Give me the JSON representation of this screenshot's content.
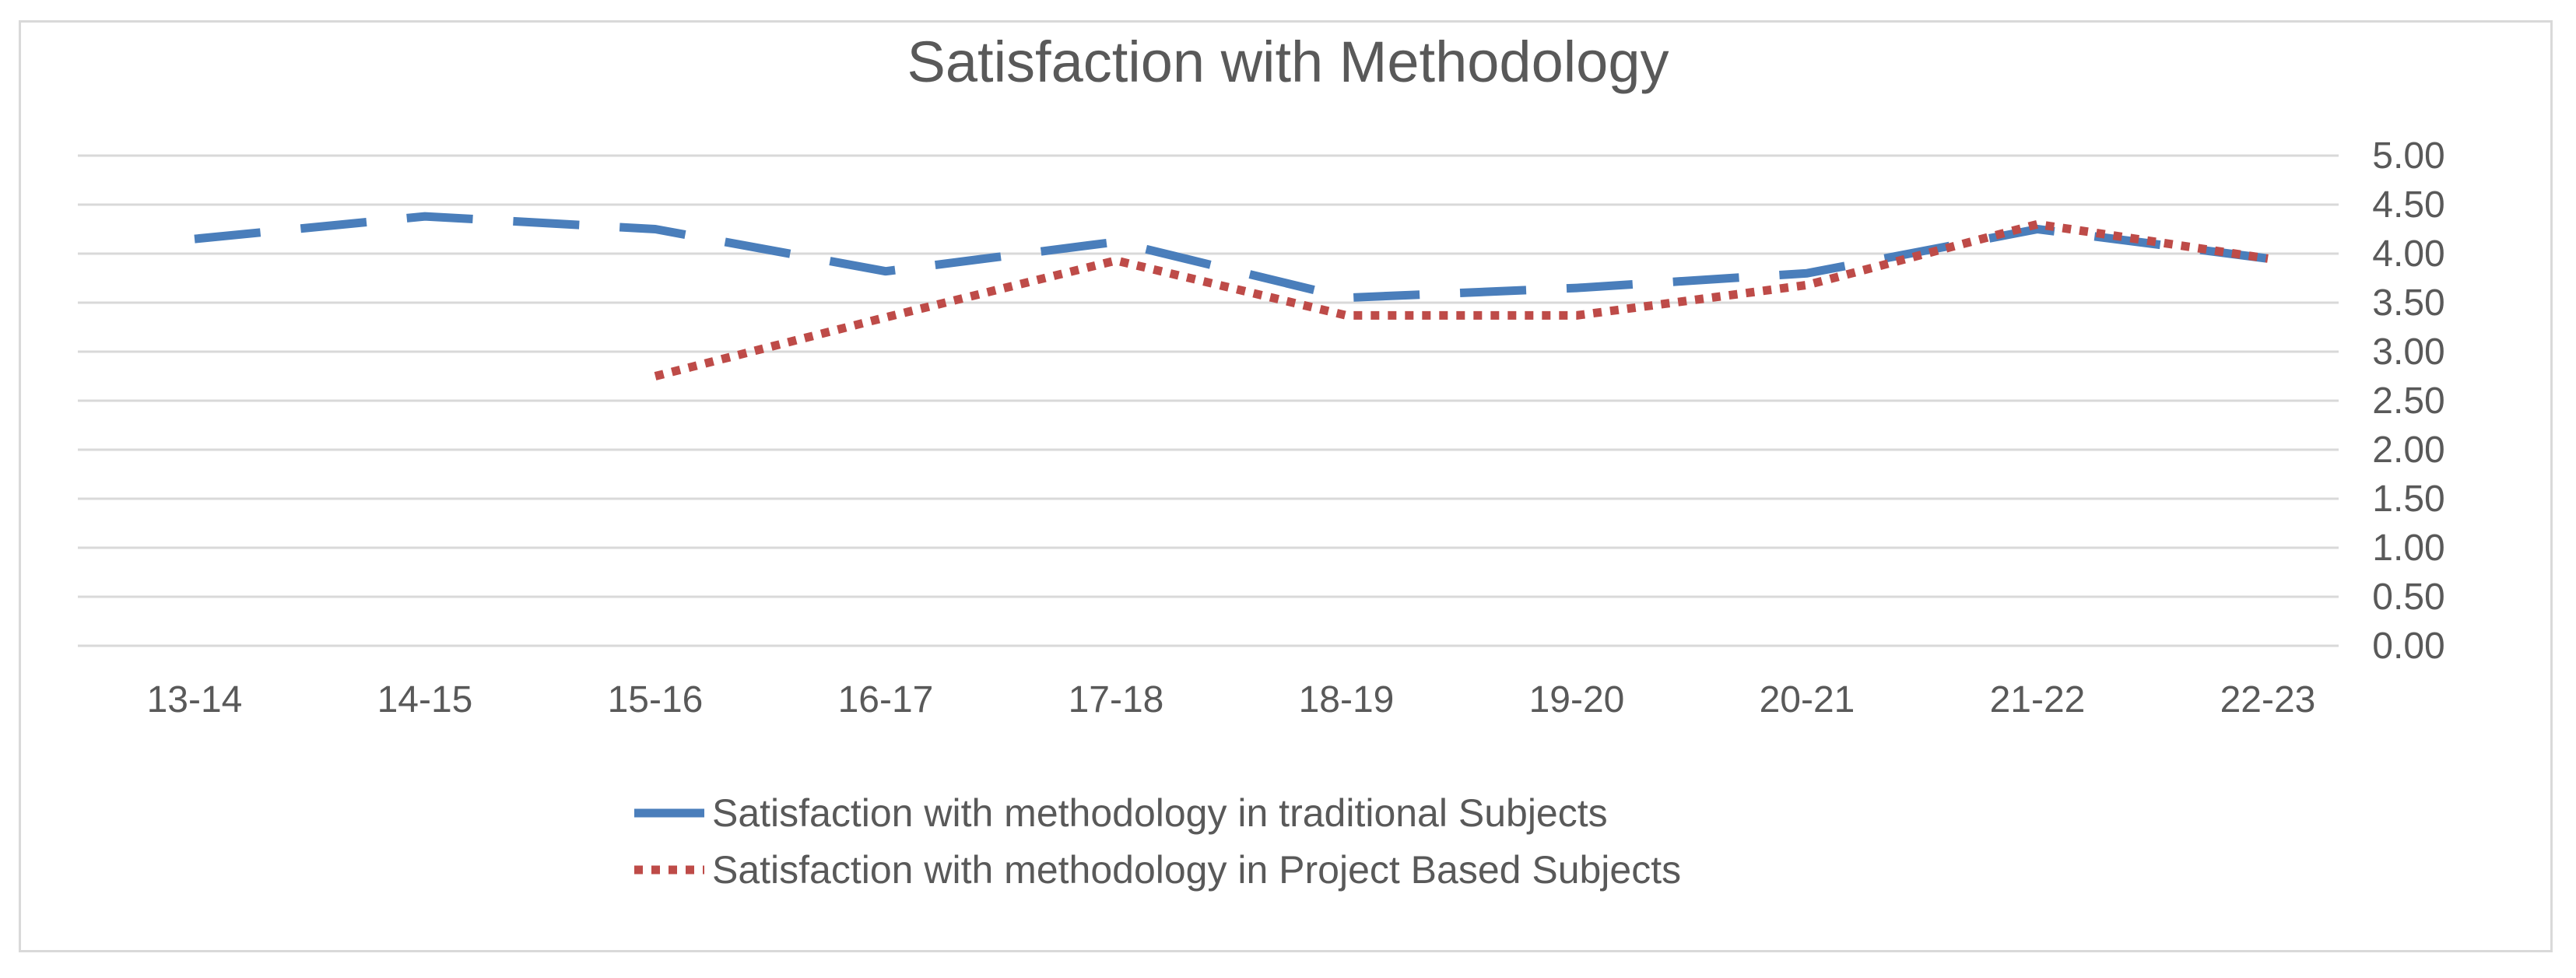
{
  "chart_data": {
    "type": "line",
    "title": "Satisfaction with Methodology",
    "xlabel": "",
    "ylabel": "",
    "categories": [
      "13-14",
      "14-15",
      "15-16",
      "16-17",
      "17-18",
      "18-19",
      "19-20",
      "20-21",
      "21-22",
      "22-23"
    ],
    "ylim": [
      0,
      5
    ],
    "yticks": [
      "0.00",
      "0.50",
      "1.00",
      "1.50",
      "2.00",
      "2.50",
      "3.00",
      "3.50",
      "4.00",
      "4.50",
      "5.00"
    ],
    "y_axis_side": "right",
    "grid": true,
    "legend_position": "bottom",
    "series": [
      {
        "name": "Satisfaction with methodology in traditional Subjects",
        "values": [
          4.15,
          4.38,
          4.25,
          3.82,
          4.12,
          3.55,
          3.65,
          3.8,
          4.25,
          3.95
        ],
        "color": "#4a7ebb",
        "style": "long-dash"
      },
      {
        "name": "Satisfaction with methodology in Project Based Subjects",
        "values": [
          null,
          null,
          2.75,
          3.35,
          3.93,
          3.37,
          3.37,
          3.68,
          4.3,
          3.95
        ],
        "color": "#be4b48",
        "style": "dotted"
      }
    ]
  }
}
